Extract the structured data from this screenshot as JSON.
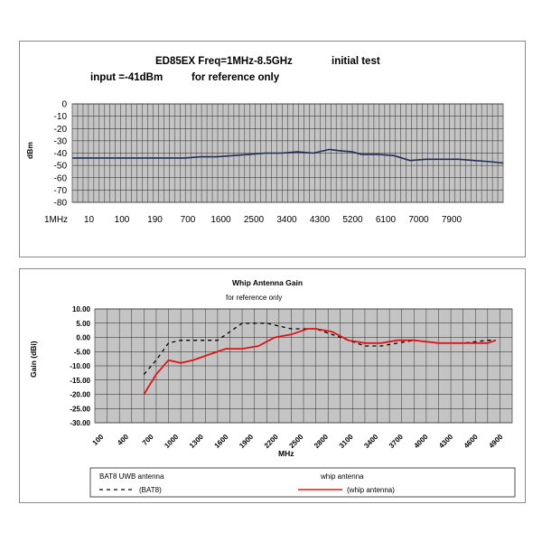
{
  "chart_data": [
    {
      "type": "line",
      "title": "ED85EX Freq=1MHz-8.5GHz",
      "title_note": "initial test",
      "subtitle": "input =-41dBm",
      "subtitle_note": "for reference only",
      "xlabel": "",
      "ylabel": "dBm",
      "ylim": [
        -80,
        0
      ],
      "yticks": [
        0,
        -10,
        -20,
        -30,
        -40,
        -50,
        -60,
        -70,
        -80
      ],
      "xtick_labels": [
        "1MHz",
        "10",
        "100",
        "190",
        "700",
        "1600",
        "2500",
        "3400",
        "4300",
        "5200",
        "6100",
        "7000",
        "7900"
      ],
      "grid": true,
      "series": [
        {
          "color": "#1f2d5a",
          "x": [
            0,
            0.5,
            1,
            1.5,
            2,
            2.5,
            3,
            3.5,
            4,
            4.5,
            5,
            5.5,
            6,
            6.5,
            7,
            7.5,
            8,
            8.3,
            8.7,
            9,
            9.5,
            10,
            10.5,
            11,
            11.5,
            12,
            12.5,
            13,
            13.4
          ],
          "values": [
            -44,
            -44,
            -44,
            -44,
            -44,
            -44,
            -44,
            -44,
            -43,
            -43,
            -42,
            -41,
            -40,
            -40,
            -39,
            -40,
            -37,
            -38,
            -39,
            -41,
            -41,
            -42,
            -46,
            -45,
            -45,
            -45,
            -46,
            -47,
            -48
          ]
        }
      ]
    },
    {
      "type": "line",
      "title": "Whip Antenna Gain",
      "subtitle": "for reference only",
      "xlabel": "MHz",
      "ylabel": "Gain (dBi)",
      "ylim": [
        -30,
        10
      ],
      "yticks": [
        "10.00",
        "5.00",
        "0.00",
        "-5.00",
        "-10.00",
        "-15.00",
        "-20.00",
        "-25.00",
        "-30.00"
      ],
      "xtick_labels": [
        "100",
        "400",
        "700",
        "1000",
        "1300",
        "1600",
        "1900",
        "2200",
        "2500",
        "2800",
        "3100",
        "3400",
        "3700",
        "4000",
        "4300",
        "4600",
        "4900"
      ],
      "grid": true,
      "legend": {
        "left_title": "BAT8 UWB antenna",
        "left_entry": "(BAT8)",
        "right_title": "whip antenna",
        "right_entry": "(whip antenna)"
      },
      "series": [
        {
          "name": "(BAT8)",
          "color": "#000000",
          "dash": true,
          "x": [
            700,
            850,
            1000,
            1150,
            1300,
            1600,
            1900,
            2200,
            2500,
            2800,
            3000,
            3200,
            3400,
            3600,
            3800,
            4000,
            4300,
            4600,
            4900,
            5000
          ],
          "values": [
            -13,
            -8,
            -2,
            -1,
            -1,
            -1,
            5,
            5,
            3,
            3,
            1,
            -1,
            -3,
            -3,
            -2,
            -1,
            -2,
            -2,
            -1,
            -1
          ]
        },
        {
          "name": "(whip antenna)",
          "color": "#e01515",
          "dash": false,
          "x": [
            700,
            850,
            1000,
            1150,
            1300,
            1500,
            1700,
            1900,
            2100,
            2300,
            2500,
            2700,
            2800,
            3000,
            3200,
            3400,
            3600,
            3800,
            4000,
            4300,
            4600,
            4900,
            5000
          ],
          "values": [
            -20,
            -13,
            -8,
            -9,
            -8,
            -6,
            -4,
            -4,
            -3,
            0,
            1,
            3,
            3,
            2,
            -1,
            -2,
            -2,
            -1,
            -1,
            -2,
            -2,
            -2,
            -1
          ]
        }
      ]
    }
  ]
}
